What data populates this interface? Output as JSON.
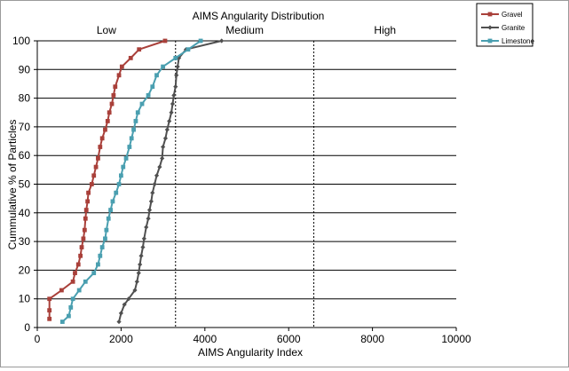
{
  "chart_data": {
    "type": "line",
    "title": "AIMS Angularity Distribution",
    "xlabel": "AIMS Angularity Index",
    "ylabel": "Cummulative % of Particles",
    "xlim": [
      0,
      10000
    ],
    "ylim": [
      0,
      100
    ],
    "x_ticks": [
      "0",
      "2000",
      "4000",
      "6000",
      "8000",
      "10000"
    ],
    "y_ticks": [
      "0",
      "10",
      "20",
      "30",
      "40",
      "50",
      "60",
      "70",
      "80",
      "90",
      "100"
    ],
    "grid": "horizontal",
    "legend_position": "top-right",
    "regions": [
      {
        "label": "Low",
        "from": 0,
        "to": 3300
      },
      {
        "label": "Medium",
        "from": 3300,
        "to": 6600
      },
      {
        "label": "High",
        "from": 6600,
        "to": 10000
      }
    ],
    "region_boundaries": [
      3300,
      6600
    ],
    "series": [
      {
        "name": "Gravel",
        "color": "#a9403a",
        "marker": "square",
        "points": [
          [
            290,
            3
          ],
          [
            290,
            6
          ],
          [
            290,
            10
          ],
          [
            580,
            13
          ],
          [
            850,
            16
          ],
          [
            900,
            19
          ],
          [
            980,
            22
          ],
          [
            1030,
            25
          ],
          [
            1060,
            28
          ],
          [
            1100,
            31
          ],
          [
            1130,
            34
          ],
          [
            1150,
            38
          ],
          [
            1170,
            41
          ],
          [
            1200,
            44
          ],
          [
            1220,
            47
          ],
          [
            1300,
            50
          ],
          [
            1350,
            53
          ],
          [
            1400,
            56
          ],
          [
            1450,
            59
          ],
          [
            1500,
            63
          ],
          [
            1550,
            66
          ],
          [
            1620,
            69
          ],
          [
            1680,
            72
          ],
          [
            1720,
            75
          ],
          [
            1780,
            78
          ],
          [
            1820,
            81
          ],
          [
            1860,
            84
          ],
          [
            1950,
            88
          ],
          [
            2020,
            91
          ],
          [
            2230,
            94
          ],
          [
            2430,
            97
          ],
          [
            3050,
            100
          ]
        ]
      },
      {
        "name": "Granite",
        "color": "#505050",
        "marker": "diamond",
        "points": [
          [
            1950,
            2
          ],
          [
            2000,
            5
          ],
          [
            2080,
            8
          ],
          [
            2180,
            10
          ],
          [
            2330,
            13
          ],
          [
            2380,
            16
          ],
          [
            2420,
            19
          ],
          [
            2450,
            22
          ],
          [
            2480,
            25
          ],
          [
            2520,
            28
          ],
          [
            2550,
            31
          ],
          [
            2600,
            35
          ],
          [
            2650,
            38
          ],
          [
            2680,
            41
          ],
          [
            2720,
            44
          ],
          [
            2750,
            47
          ],
          [
            2800,
            50
          ],
          [
            2850,
            53
          ],
          [
            2920,
            56
          ],
          [
            2980,
            59
          ],
          [
            3000,
            63
          ],
          [
            3060,
            66
          ],
          [
            3100,
            69
          ],
          [
            3150,
            72
          ],
          [
            3200,
            75
          ],
          [
            3230,
            78
          ],
          [
            3260,
            81
          ],
          [
            3300,
            84
          ],
          [
            3320,
            88
          ],
          [
            3350,
            91
          ],
          [
            3380,
            94
          ],
          [
            3550,
            97
          ],
          [
            4400,
            100
          ]
        ]
      },
      {
        "name": "Limestone",
        "color": "#4a9fb0",
        "marker": "square",
        "points": [
          [
            600,
            2
          ],
          [
            750,
            4
          ],
          [
            800,
            7
          ],
          [
            850,
            10
          ],
          [
            1000,
            13
          ],
          [
            1150,
            16
          ],
          [
            1350,
            19
          ],
          [
            1450,
            22
          ],
          [
            1500,
            25
          ],
          [
            1550,
            28
          ],
          [
            1620,
            31
          ],
          [
            1650,
            34
          ],
          [
            1700,
            38
          ],
          [
            1750,
            41
          ],
          [
            1800,
            44
          ],
          [
            1880,
            47
          ],
          [
            1950,
            50
          ],
          [
            2000,
            53
          ],
          [
            2050,
            56
          ],
          [
            2120,
            59
          ],
          [
            2200,
            63
          ],
          [
            2250,
            66
          ],
          [
            2300,
            69
          ],
          [
            2350,
            72
          ],
          [
            2400,
            75
          ],
          [
            2500,
            78
          ],
          [
            2650,
            81
          ],
          [
            2750,
            84
          ],
          [
            2850,
            88
          ],
          [
            3000,
            91
          ],
          [
            3300,
            94
          ],
          [
            3600,
            97
          ],
          [
            3900,
            100
          ]
        ]
      }
    ]
  }
}
